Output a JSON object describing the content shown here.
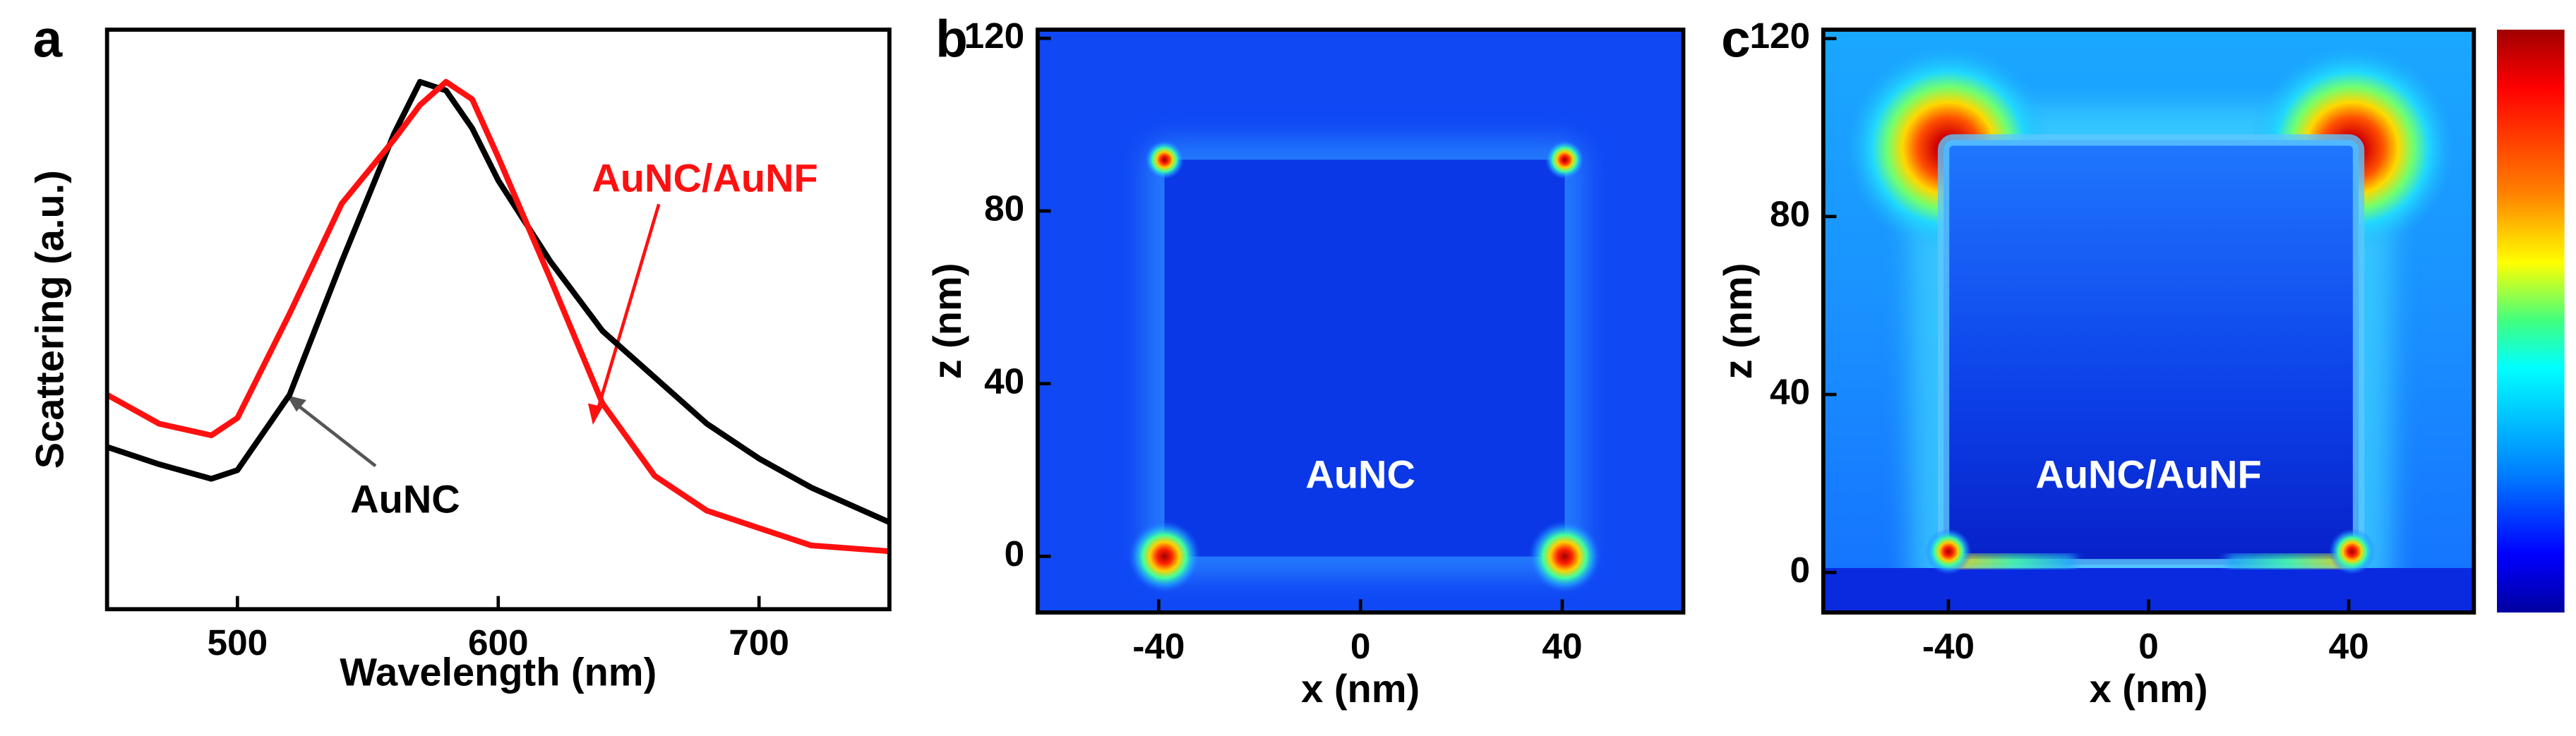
{
  "chart_data": [
    {
      "type": "line",
      "panel_label": "a",
      "xlabel": "Wavelength (nm)",
      "ylabel": "Scattering (a.u.)",
      "x": [
        450,
        470,
        490,
        500,
        520,
        540,
        560,
        570,
        580,
        590,
        600,
        620,
        640,
        660,
        680,
        700,
        720,
        750
      ],
      "series": [
        {
          "name": "AuNC",
          "color": "#000000",
          "values": [
            0.28,
            0.25,
            0.225,
            0.24,
            0.37,
            0.6,
            0.82,
            0.91,
            0.895,
            0.83,
            0.74,
            0.6,
            0.48,
            0.4,
            0.32,
            0.26,
            0.21,
            0.15
          ]
        },
        {
          "name": "AuNC/AuNF",
          "color": "#ff1010",
          "values": [
            0.37,
            0.32,
            0.3,
            0.33,
            0.51,
            0.7,
            0.81,
            0.87,
            0.91,
            0.88,
            0.78,
            0.57,
            0.355,
            0.23,
            0.17,
            0.14,
            0.11,
            0.1
          ]
        }
      ],
      "xlim": [
        450,
        750
      ],
      "xticks": [
        500,
        600,
        700
      ],
      "ylim": [
        0,
        1
      ]
    },
    {
      "type": "heatmap",
      "panel_label": "b",
      "xlabel": "x (nm)",
      "ylabel": "z (nm)",
      "annotation": "AuNC",
      "xlim": [
        -64,
        64
      ],
      "ylim": [
        -13,
        122
      ],
      "xticks": [
        -40,
        0,
        40
      ],
      "yticks": [
        0,
        40,
        80,
        120
      ]
    },
    {
      "type": "heatmap",
      "panel_label": "c",
      "xlabel": "x (nm)",
      "ylabel": "z (nm)",
      "annotation": "AuNC/AuNF",
      "xlim": [
        -65,
        65
      ],
      "ylim": [
        -9,
        122
      ],
      "xticks": [
        -40,
        0,
        40
      ],
      "yticks": [
        0,
        40,
        80,
        120
      ]
    }
  ]
}
